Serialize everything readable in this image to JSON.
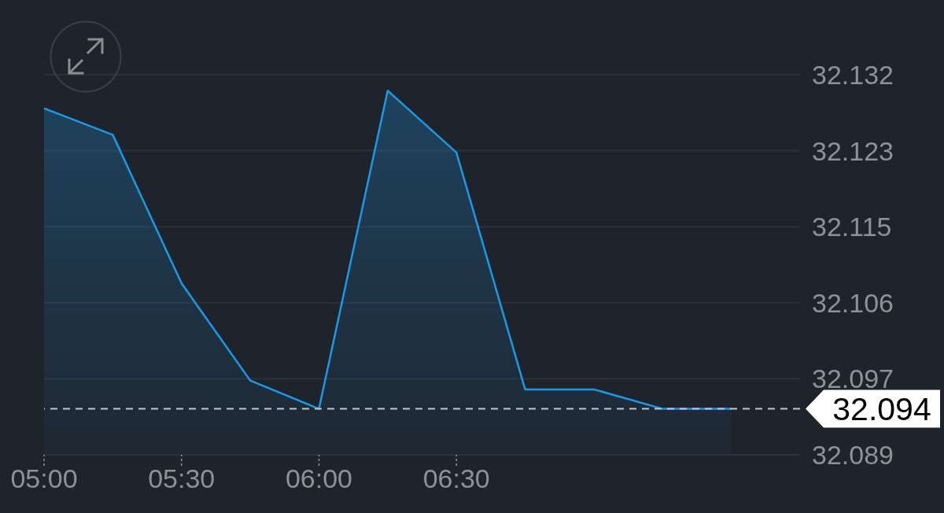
{
  "chart_data": {
    "type": "area",
    "x": [
      5,
      5.25,
      5.5,
      5.75,
      6,
      6.25,
      6.5,
      6.75,
      7,
      7.25,
      7.5
    ],
    "values": [
      32.128,
      32.125,
      32.1082,
      32.0972,
      32.094,
      32.13,
      32.123,
      32.0962,
      32.0962,
      32.094,
      32.094
    ],
    "color": "#1a9ae6",
    "xlim": [
      5,
      7.75
    ],
    "xticks": [
      {
        "value": 5,
        "label": "05:00"
      },
      {
        "value": 5.5,
        "label": "05:30"
      },
      {
        "value": 6,
        "label": "06:00"
      },
      {
        "value": 6.5,
        "label": "06:30"
      }
    ],
    "ylim": [
      32.0888,
      32.1318
    ],
    "yticks": [
      {
        "value": 32.0888,
        "label": "32.089"
      },
      {
        "value": 32.0974,
        "label": "32.097"
      },
      {
        "value": 32.106,
        "label": "32.106"
      },
      {
        "value": 32.1146,
        "label": "32.115"
      },
      {
        "value": 32.1232,
        "label": "32.123"
      },
      {
        "value": 32.1318,
        "label": "32.132"
      }
    ],
    "grid": "y",
    "marker": "none",
    "ref_lines": [
      {
        "axis": "y",
        "value": 32.094,
        "label": "32.094",
        "color": "#c4c6ca",
        "line_style": "dashed"
      }
    ]
  }
}
